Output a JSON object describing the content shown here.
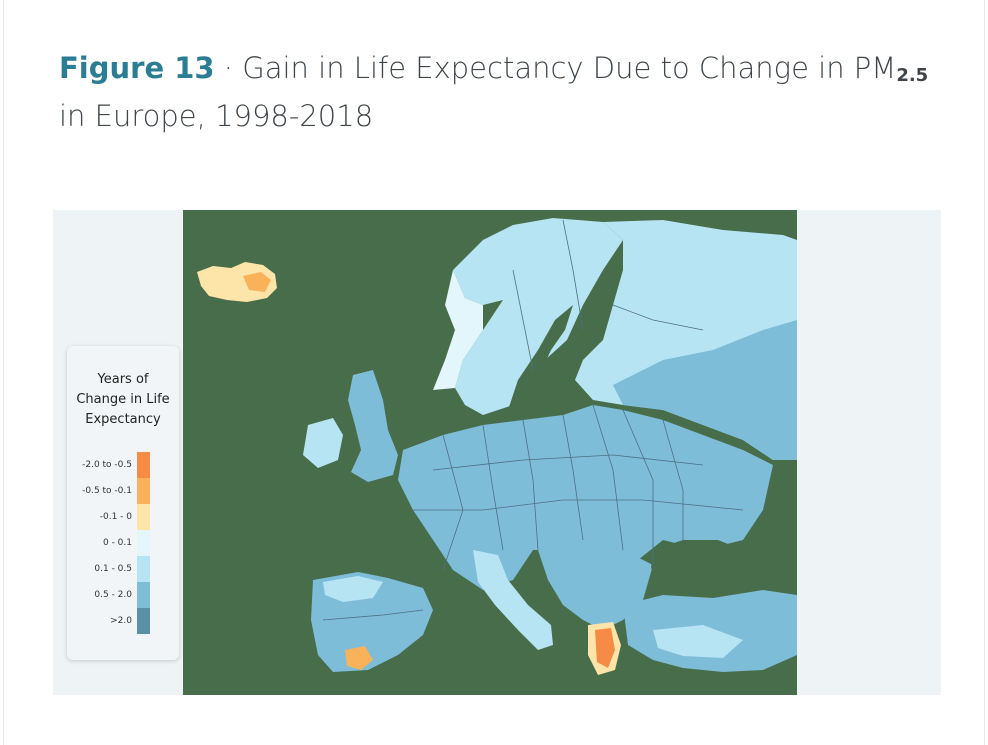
{
  "title": {
    "figure_label": "Figure 13",
    "separator": " · ",
    "text": "Gain in Life Expectancy Due to Change in PM",
    "subscript": "2.5",
    "line2": "in Europe, 1998-2018"
  },
  "legend": {
    "title_lines": [
      "Years of",
      "Change in Life",
      "Expectancy"
    ],
    "items": [
      {
        "label": "-2.0 to -0.5",
        "color": "#f58b45"
      },
      {
        "label": "-0.5 to -0.1",
        "color": "#f9b25a"
      },
      {
        "label": "-0.1 - 0",
        "color": "#fde4a8"
      },
      {
        "label": "0 - 0.1",
        "color": "#e2f6fb"
      },
      {
        "label": "0.1 - 0.5",
        "color": "#b6e4f3"
      },
      {
        "label": "0.5 - 2.0",
        "color": "#7dbdd8"
      },
      {
        "label": ">2.0",
        "color": "#5990a6"
      }
    ]
  },
  "map": {
    "water_color": "#486d4b",
    "frame_color": "#eef3f6",
    "border_color": "#4f6f85"
  }
}
